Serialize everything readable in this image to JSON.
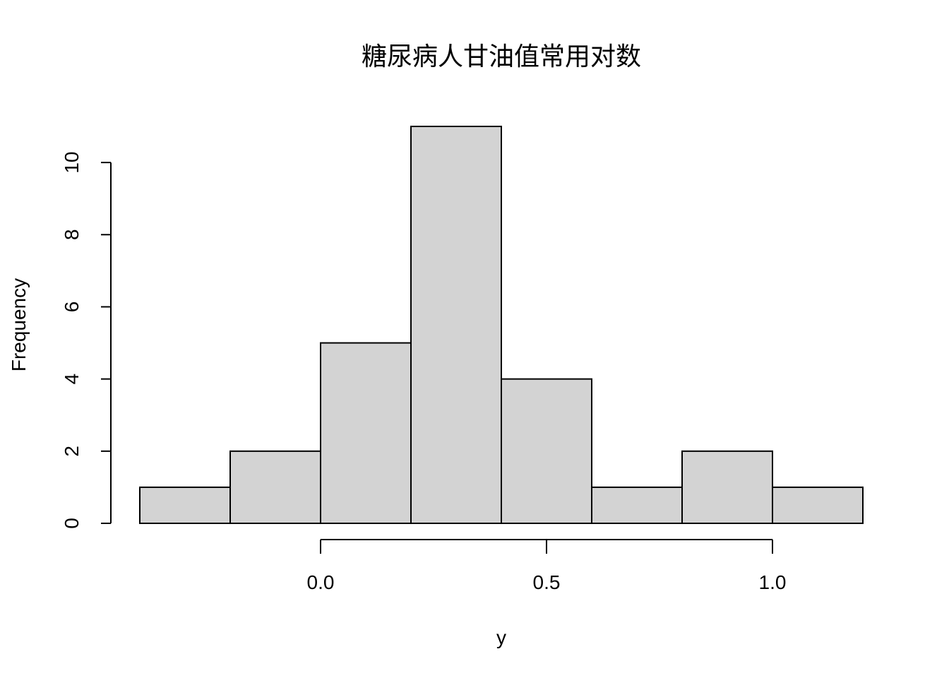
{
  "chart_data": {
    "type": "bar",
    "title": "糖尿病人甘油值常用对数",
    "xlabel": "y",
    "ylabel": "Frequency",
    "bins": [
      {
        "start": -0.4,
        "end": -0.2,
        "count": 1
      },
      {
        "start": -0.2,
        "end": 0.0,
        "count": 2
      },
      {
        "start": 0.0,
        "end": 0.2,
        "count": 5
      },
      {
        "start": 0.2,
        "end": 0.4,
        "count": 11
      },
      {
        "start": 0.4,
        "end": 0.6,
        "count": 4
      },
      {
        "start": 0.6,
        "end": 0.8,
        "count": 1
      },
      {
        "start": 0.8,
        "end": 1.0,
        "count": 2
      },
      {
        "start": 1.0,
        "end": 1.2,
        "count": 1
      }
    ],
    "xlim": [
      -0.4,
      1.2
    ],
    "ylim": [
      0,
      11
    ],
    "x_ticks": [
      {
        "value": 0.0,
        "label": "0.0"
      },
      {
        "value": 0.5,
        "label": "0.5"
      },
      {
        "value": 1.0,
        "label": "1.0"
      }
    ],
    "y_ticks": [
      {
        "value": 0,
        "label": "0"
      },
      {
        "value": 2,
        "label": "2"
      },
      {
        "value": 4,
        "label": "4"
      },
      {
        "value": 6,
        "label": "6"
      },
      {
        "value": 8,
        "label": "8"
      },
      {
        "value": 10,
        "label": "10"
      }
    ],
    "grid": false,
    "bar_color": "#d3d3d3",
    "edge_color": "#000000"
  }
}
